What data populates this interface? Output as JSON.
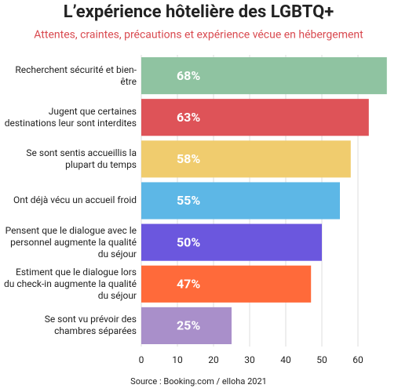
{
  "chart_data": {
    "type": "bar",
    "orientation": "horizontal",
    "title": "L’expérience hôtelière des LGBTQ+",
    "subtitle": "Attentes, craintes, précautions et expérience vécue en hébergement",
    "categories": [
      "Recherchent sécurité et bien-être",
      "Jugent que certaines destinations leur sont interdites",
      "Se sont sentis accueillis la plupart du temps",
      "Ont déjà vécu un accueil froid",
      "Pensent que le dialogue avec le personnel augmente la qualité du séjour",
      "Estiment que le dialogue lors du check-in augmente la qualité du séjour",
      "Se sont vu prévoir des chambres séparées"
    ],
    "values": [
      68,
      63,
      58,
      55,
      50,
      47,
      25
    ],
    "value_labels": [
      "68%",
      "63%",
      "58%",
      "55%",
      "50%",
      "47%",
      "25%"
    ],
    "colors": [
      "#8fc3a1",
      "#de5358",
      "#f0cc6e",
      "#5db7e6",
      "#6b57de",
      "#ff6a3a",
      "#a98fca"
    ],
    "xlim": [
      0,
      70
    ],
    "xticks": [
      0,
      10,
      20,
      30,
      40,
      50,
      60
    ],
    "grid": true,
    "source": "Source : Booking.com / elloha 2021"
  }
}
